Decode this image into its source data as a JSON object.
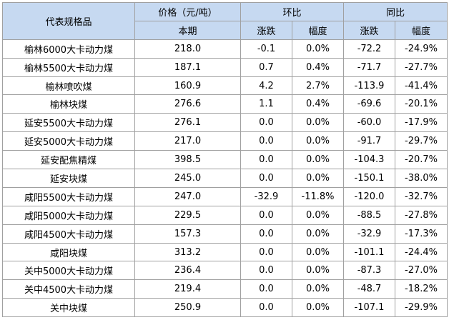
{
  "table": {
    "header": {
      "product": "代表规格品",
      "price": "价格（元/吨）",
      "current": "本期",
      "mom": "环比",
      "yoy": "同比",
      "mom_change": "涨跌",
      "mom_rate": "幅度",
      "yoy_change": "涨跌",
      "yoy_rate": "幅度"
    },
    "rows": [
      [
        "榆林6000大卡动力煤",
        "218.0",
        "-0.1",
        "0.0%",
        "-72.2",
        "-24.9%"
      ],
      [
        "榆林5500大卡动力煤",
        "187.1",
        "0.7",
        "0.4%",
        "-71.7",
        "-27.7%"
      ],
      [
        "榆林喷吹煤",
        "160.9",
        "4.2",
        "2.7%",
        "-113.9",
        "-41.4%"
      ],
      [
        "榆林块煤",
        "276.6",
        "1.1",
        "0.4%",
        "-69.6",
        "-20.1%"
      ],
      [
        "延安5500大卡动力煤",
        "276.1",
        "0.0",
        "0.0%",
        "-60.0",
        "-17.9%"
      ],
      [
        "延安5000大卡动力煤",
        "217.0",
        "0.0",
        "0.0%",
        "-91.7",
        "-29.7%"
      ],
      [
        "延安配焦精煤",
        "398.5",
        "0.0",
        "0.0%",
        "-104.3",
        "-20.7%"
      ],
      [
        "延安块煤",
        "245.0",
        "0.0",
        "0.0%",
        "-150.1",
        "-38.0%"
      ],
      [
        "咸阳5500大卡动力煤",
        "247.0",
        "-32.9",
        "-11.8%",
        "-120.0",
        "-32.7%"
      ],
      [
        "咸阳5000大卡动力煤",
        "229.5",
        "0.0",
        "0.0%",
        "-88.5",
        "-27.8%"
      ],
      [
        "咸阳4500大卡动力煤",
        "157.3",
        "0.0",
        "0.0%",
        "-32.9",
        "-17.3%"
      ],
      [
        "咸阳块煤",
        "313.2",
        "0.0",
        "0.0%",
        "-101.1",
        "-24.4%"
      ],
      [
        "关中5000大卡动力煤",
        "236.4",
        "0.0",
        "0.0%",
        "-87.3",
        "-27.0%"
      ],
      [
        "关中4500大卡动力煤",
        "219.4",
        "0.0",
        "0.0%",
        "-48.7",
        "-18.2%"
      ],
      [
        "关中块煤",
        "250.9",
        "0.0",
        "0.0%",
        "-107.1",
        "-29.9%"
      ]
    ]
  }
}
